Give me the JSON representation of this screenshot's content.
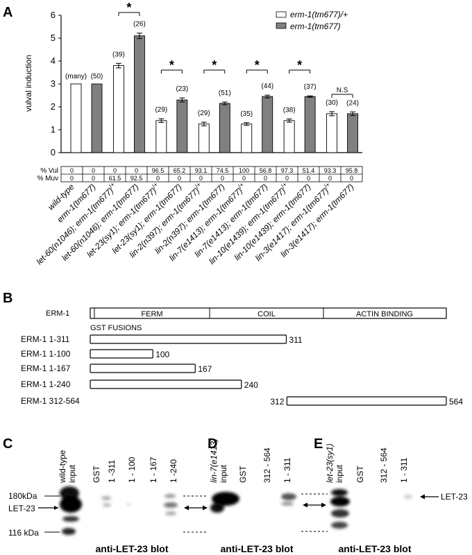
{
  "panels": {
    "A": "A",
    "B": "B",
    "C": "C",
    "D": "D",
    "E": "E"
  },
  "chart_data": {
    "type": "bar",
    "ylabel": "vulval induction",
    "ylim": [
      0,
      6
    ],
    "yticks": [
      "0",
      "1",
      "2",
      "3",
      "4",
      "5",
      "6"
    ],
    "categories": [
      "wild-type",
      "erm-1(tm677)",
      "let-60(n1046); erm-1(tm677)/+",
      "let-60(n1046); erm-1(tm677)",
      "let-23(sy1); erm-1(tm677)/+",
      "let-23(sy1); erm-1(tm677)",
      "lin-2(n397); erm-1(tm677)/+",
      "lin-2(n397); erm-1(tm677)",
      "lin-7(e1413); erm-1(tm677)/+",
      "lin-7(e1413); erm-1(tm677)",
      "lin-10(e1439); erm-1(tm677)/+",
      "lin-10(e1439); erm-1(tm677)",
      "lin-3(e1417); erm-1(tm677)/+",
      "lin-3(e1417); erm-1(tm677)"
    ],
    "bars": [
      {
        "value": 3.0,
        "err": 0,
        "series": 0,
        "n": "(many)"
      },
      {
        "value": 3.0,
        "err": 0,
        "series": 1,
        "n": "(50)"
      },
      {
        "value": 3.8,
        "err": 0.1,
        "series": 0,
        "n": "(39)"
      },
      {
        "value": 5.1,
        "err": 0.12,
        "series": 1,
        "n": "(26)"
      },
      {
        "value": 1.4,
        "err": 0.08,
        "series": 0,
        "n": "(29)"
      },
      {
        "value": 2.3,
        "err": 0.09,
        "series": 1,
        "n": "(23)"
      },
      {
        "value": 1.25,
        "err": 0.08,
        "series": 0,
        "n": "(29)"
      },
      {
        "value": 2.15,
        "err": 0.06,
        "series": 1,
        "n": "(51)"
      },
      {
        "value": 1.25,
        "err": 0.06,
        "series": 0,
        "n": "(35)"
      },
      {
        "value": 2.45,
        "err": 0.06,
        "series": 1,
        "n": "(44)"
      },
      {
        "value": 1.4,
        "err": 0.07,
        "series": 0,
        "n": "(38)"
      },
      {
        "value": 2.45,
        "err": 0.03,
        "series": 1,
        "n": "(37)"
      },
      {
        "value": 1.7,
        "err": 0.09,
        "series": 0,
        "n": "(30)"
      },
      {
        "value": 1.7,
        "err": 0.08,
        "series": 1,
        "n": "(24)"
      }
    ],
    "series": [
      {
        "name": "erm-1(tm677)/+",
        "color": "#ffffff"
      },
      {
        "name": "erm-1(tm677)",
        "color": "#808080"
      }
    ],
    "significance": [
      {
        "pair": [
          2,
          3
        ],
        "label": "*"
      },
      {
        "pair": [
          4,
          5
        ],
        "label": "*"
      },
      {
        "pair": [
          6,
          7
        ],
        "label": "*"
      },
      {
        "pair": [
          8,
          9
        ],
        "label": "*"
      },
      {
        "pair": [
          10,
          11
        ],
        "label": "*"
      },
      {
        "pair": [
          12,
          13
        ],
        "label": "N.S"
      }
    ],
    "legend_position": "top-right",
    "table": {
      "rows": [
        {
          "label": "% Vul",
          "values": [
            "0",
            "0",
            "0",
            "0",
            "96.5",
            "65.2",
            "93.1",
            "74.5",
            "100",
            "56.8",
            "97.3",
            "51.4",
            "93.3",
            "95.8"
          ]
        },
        {
          "label": "% Muv",
          "values": [
            "0",
            "0",
            "61.5",
            "92.5",
            "0",
            "0",
            "0",
            "0",
            "0",
            "0",
            "0",
            "0",
            "0",
            "0"
          ]
        }
      ]
    }
  },
  "panelB": {
    "protein_label": "ERM-1",
    "domains": [
      "FERM",
      "COIL",
      "ACTIN BINDING"
    ],
    "gst_heading": "GST FUSIONS",
    "fusions": [
      {
        "label": "ERM-1 1-311",
        "start": 1,
        "end": 311,
        "start_label": "",
        "end_label": "311"
      },
      {
        "label": "ERM-1 1-100",
        "start": 1,
        "end": 100,
        "start_label": "",
        "end_label": "100"
      },
      {
        "label": "ERM-1 1-167",
        "start": 1,
        "end": 167,
        "start_label": "",
        "end_label": "167"
      },
      {
        "label": "ERM-1 1-240",
        "start": 1,
        "end": 240,
        "start_label": "",
        "end_label": "240"
      },
      {
        "label": "ERM-1 312-564",
        "start": 312,
        "end": 564,
        "start_label": "312",
        "end_label": "564"
      }
    ]
  },
  "blots": {
    "C": {
      "lanes": [
        "wild-type input",
        "GST",
        "1 -311",
        "1 - 100",
        "1 - 167",
        "1 -240"
      ],
      "caption": "anti-LET-23 blot"
    },
    "D": {
      "lanes": [
        "lin-7(e1413) input",
        "GST",
        "312 - 564",
        "1 - 311"
      ],
      "caption": "anti-LET-23 blot"
    },
    "E": {
      "lanes": [
        "let-23(sy1) input",
        "GST",
        "312 - 564",
        "1 - 311"
      ],
      "caption": "anti-LET-23 blot"
    },
    "markers": {
      "upper": "180kDa",
      "target": "LET-23",
      "lower": "116 kDa"
    },
    "right_label": "LET-23"
  }
}
